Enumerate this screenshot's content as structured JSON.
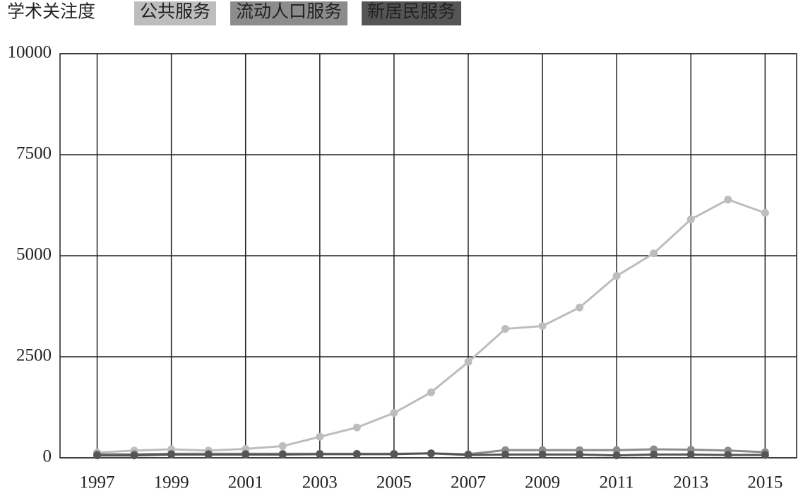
{
  "chart_data": {
    "type": "line",
    "legend_title": "学术关注度",
    "x": [
      1997,
      1998,
      1999,
      2000,
      2001,
      2002,
      2003,
      2004,
      2005,
      2006,
      2007,
      2008,
      2009,
      2010,
      2011,
      2012,
      2013,
      2014,
      2015
    ],
    "series": [
      {
        "name": "公共服务",
        "color": "#bdbdbd",
        "values": [
          130,
          180,
          210,
          180,
          220,
          290,
          520,
          750,
          1110,
          1620,
          2370,
          3190,
          3260,
          3720,
          4500,
          5060,
          5900,
          6390,
          6060
        ]
      },
      {
        "name": "流动人口服务",
        "color": "#8c8c8c",
        "values": [
          90,
          90,
          100,
          100,
          100,
          100,
          100,
          100,
          100,
          110,
          90,
          190,
          190,
          190,
          190,
          210,
          200,
          180,
          140
        ]
      },
      {
        "name": "新居民服务",
        "color": "#555555",
        "values": [
          60,
          60,
          80,
          80,
          80,
          80,
          90,
          90,
          90,
          110,
          70,
          80,
          80,
          80,
          60,
          80,
          80,
          70,
          70
        ]
      }
    ],
    "xlim": [
      1996,
      2015.85
    ],
    "xticks": [
      1997,
      1999,
      2001,
      2003,
      2005,
      2007,
      2009,
      2011,
      2013,
      2015
    ],
    "ylim": [
      0,
      10000
    ],
    "yticks": [
      0,
      2500,
      5000,
      7500,
      10000
    ],
    "grid": true
  }
}
